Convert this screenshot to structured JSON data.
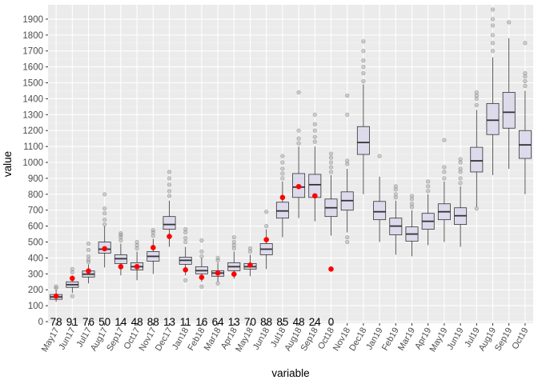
{
  "chart_data": {
    "type": "box",
    "xlabel": "variable",
    "ylabel": "value",
    "ylim": [
      -10,
      1990
    ],
    "yticks": [
      0,
      100,
      200,
      300,
      400,
      500,
      600,
      700,
      800,
      900,
      1000,
      1100,
      1200,
      1300,
      1400,
      1500,
      1600,
      1700,
      1800,
      1900
    ],
    "grid": true,
    "colors": {
      "panel": "#ebebeb",
      "grid_major": "#ffffff",
      "box_fill": "#dcdaeb",
      "box_line": "#333333",
      "mean_point": "#ff0000",
      "outlier": "#999999",
      "tick_text": "#4d4d4d",
      "axis_title": "#000000"
    },
    "categories": [
      "May17",
      "Jun17",
      "Jul17",
      "Aug17",
      "Sep17",
      "Oct17",
      "Nov17",
      "Dec17",
      "Jan18",
      "Feb18",
      "Mar18",
      "Apr18",
      "May18",
      "Jun18",
      "Jul18",
      "Aug18",
      "Sep18",
      "Oct18",
      "Nov18",
      "Dec18",
      "Jan19",
      "Feb19",
      "Mar19",
      "Apr19",
      "May19",
      "Jun19",
      "Jul19",
      "Aug19",
      "Sep19",
      "Oct19"
    ],
    "boxes": [
      {
        "lower": 125,
        "q1": 140,
        "median": 155,
        "q3": 170,
        "upper": 200,
        "outliers": [
          210,
          220
        ]
      },
      {
        "lower": 180,
        "q1": 215,
        "median": 232,
        "q3": 250,
        "upper": 290,
        "outliers": [
          160,
          310,
          330
        ]
      },
      {
        "lower": 240,
        "q1": 280,
        "median": 298,
        "q3": 318,
        "upper": 360,
        "outliers": [
          375,
          390,
          410,
          450,
          490
        ]
      },
      {
        "lower": 340,
        "q1": 430,
        "median": 455,
        "q3": 500,
        "upper": 600,
        "outliers": [
          610,
          640,
          680,
          710,
          800
        ]
      },
      {
        "lower": 290,
        "q1": 365,
        "median": 395,
        "q3": 420,
        "upper": 490,
        "outliers": [
          510,
          530,
          545,
          555
        ]
      },
      {
        "lower": 260,
        "q1": 325,
        "median": 345,
        "q3": 370,
        "upper": 440,
        "outliers": [
          460,
          480,
          500
        ]
      },
      {
        "lower": 300,
        "q1": 380,
        "median": 410,
        "q3": 440,
        "upper": 520,
        "outliers": [
          540,
          560,
          575
        ]
      },
      {
        "lower": 470,
        "q1": 580,
        "median": 610,
        "q3": 660,
        "upper": 760,
        "outliers": [
          790,
          820,
          860,
          900,
          940
        ]
      },
      {
        "lower": 290,
        "q1": 360,
        "median": 385,
        "q3": 405,
        "upper": 470,
        "outliers": [
          260,
          500,
          525,
          560,
          580
        ]
      },
      {
        "lower": 250,
        "q1": 300,
        "median": 320,
        "q3": 345,
        "upper": 400,
        "outliers": [
          220,
          410,
          440,
          510
        ]
      },
      {
        "lower": 250,
        "q1": 285,
        "median": 305,
        "q3": 320,
        "upper": 370,
        "outliers": [
          240,
          385,
          400
        ]
      },
      {
        "lower": 270,
        "q1": 320,
        "median": 345,
        "q3": 370,
        "upper": 440,
        "outliers": [
          460,
          480,
          500,
          530
        ]
      },
      {
        "lower": 285,
        "q1": 330,
        "median": 345,
        "q3": 365,
        "upper": 420,
        "outliers": [
          440,
          460
        ]
      },
      {
        "lower": 330,
        "q1": 420,
        "median": 455,
        "q3": 490,
        "upper": 580,
        "outliers": [
          600,
          690
        ]
      },
      {
        "lower": 530,
        "q1": 650,
        "median": 695,
        "q3": 750,
        "upper": 880,
        "outliers": [
          900,
          930,
          960,
          1000,
          1040
        ]
      },
      {
        "lower": 650,
        "q1": 780,
        "median": 845,
        "q3": 930,
        "upper": 1100,
        "outliers": [
          1120,
          1150,
          1200,
          1440
        ]
      },
      {
        "lower": 630,
        "q1": 780,
        "median": 860,
        "q3": 925,
        "upper": 1100,
        "outliers": [
          1130,
          1160,
          1200,
          1240,
          1300
        ]
      },
      {
        "lower": 540,
        "q1": 660,
        "median": 715,
        "q3": 770,
        "upper": 920,
        "outliers": [
          940,
          970,
          1000,
          1030,
          1055
        ]
      },
      {
        "lower": 560,
        "q1": 700,
        "median": 760,
        "q3": 815,
        "upper": 960,
        "outliers": [
          500,
          530,
          990,
          1010,
          1300,
          1420
        ]
      },
      {
        "lower": 800,
        "q1": 1050,
        "median": 1125,
        "q3": 1225,
        "upper": 1490,
        "outliers": [
          1510,
          1560,
          1600,
          1640,
          1700,
          1760
        ]
      },
      {
        "lower": 500,
        "q1": 640,
        "median": 690,
        "q3": 755,
        "upper": 910,
        "outliers": [
          1040
        ]
      },
      {
        "lower": 420,
        "q1": 545,
        "median": 600,
        "q3": 650,
        "upper": 760,
        "outliers": [
          780,
          800,
          830,
          850
        ]
      },
      {
        "lower": 410,
        "q1": 505,
        "median": 550,
        "q3": 595,
        "upper": 700,
        "outliers": [
          720,
          740,
          770,
          790
        ]
      },
      {
        "lower": 480,
        "q1": 580,
        "median": 630,
        "q3": 680,
        "upper": 800,
        "outliers": [
          820,
          850,
          880
        ]
      },
      {
        "lower": 500,
        "q1": 640,
        "median": 690,
        "q3": 740,
        "upper": 880,
        "outliers": [
          900,
          940,
          970,
          1140
        ]
      },
      {
        "lower": 470,
        "q1": 610,
        "median": 665,
        "q3": 715,
        "upper": 850,
        "outliers": [
          870,
          900,
          940,
          960,
          1000,
          1020
        ]
      },
      {
        "lower": 720,
        "q1": 940,
        "median": 1010,
        "q3": 1095,
        "upper": 1330,
        "outliers": [
          710,
          1360,
          1400,
          1420,
          1440
        ]
      },
      {
        "lower": 920,
        "q1": 1175,
        "median": 1265,
        "q3": 1370,
        "upper": 1660,
        "outliers": [
          1700,
          1750,
          1800,
          1860,
          1900,
          1960
        ]
      },
      {
        "lower": 960,
        "q1": 1215,
        "median": 1315,
        "q3": 1440,
        "upper": 1780,
        "outliers": [
          1880
        ]
      },
      {
        "lower": 800,
        "q1": 1025,
        "median": 1110,
        "q3": 1200,
        "upper": 1450,
        "outliers": [
          1480,
          1510,
          1540,
          1560,
          1750
        ]
      }
    ],
    "means": [
      {
        "category": "May17",
        "value": 160
      },
      {
        "category": "Jun17",
        "value": 272
      },
      {
        "category": "Jul17",
        "value": 318
      },
      {
        "category": "Aug17",
        "value": 458
      },
      {
        "category": "Sep17",
        "value": 345
      },
      {
        "category": "Oct17",
        "value": 345
      },
      {
        "category": "Nov17",
        "value": 465
      },
      {
        "category": "Dec17",
        "value": 535
      },
      {
        "category": "Jan18",
        "value": 325
      },
      {
        "category": "Feb18",
        "value": 278
      },
      {
        "category": "Mar18",
        "value": 305
      },
      {
        "category": "Apr18",
        "value": 298
      },
      {
        "category": "May18",
        "value": 355
      },
      {
        "category": "Jun18",
        "value": 515
      },
      {
        "category": "Jul18",
        "value": 780
      },
      {
        "category": "Aug18",
        "value": 848
      },
      {
        "category": "Sep18",
        "value": 790
      },
      {
        "category": "Oct18",
        "value": 330
      }
    ],
    "count_labels": [
      {
        "category": "May17",
        "text": "78"
      },
      {
        "category": "Jun17",
        "text": "91"
      },
      {
        "category": "Jul17",
        "text": "76"
      },
      {
        "category": "Aug17",
        "text": "50"
      },
      {
        "category": "Sep17",
        "text": "14"
      },
      {
        "category": "Oct17",
        "text": "48"
      },
      {
        "category": "Nov17",
        "text": "88"
      },
      {
        "category": "Dec17",
        "text": "13"
      },
      {
        "category": "Jan18",
        "text": "11"
      },
      {
        "category": "Feb18",
        "text": "16"
      },
      {
        "category": "Mar18",
        "text": "64"
      },
      {
        "category": "Apr18",
        "text": "13"
      },
      {
        "category": "May18",
        "text": "70"
      },
      {
        "category": "Jun18",
        "text": "88"
      },
      {
        "category": "Jul18",
        "text": "85"
      },
      {
        "category": "Aug18",
        "text": "48"
      },
      {
        "category": "Sep18",
        "text": "24"
      },
      {
        "category": "Oct18",
        "text": "0"
      }
    ]
  }
}
